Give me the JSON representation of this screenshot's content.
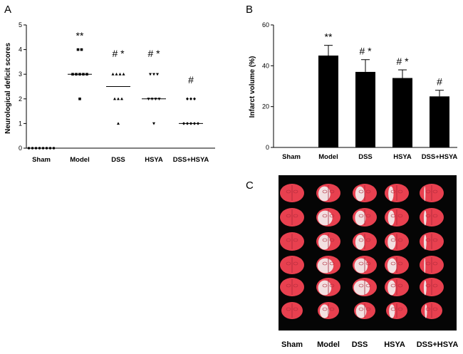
{
  "panels": {
    "a": "A",
    "b": "B",
    "c": "C"
  },
  "chart_data": [
    {
      "type": "scatter",
      "panel": "A",
      "ylabel": "Neurological deficit scores",
      "xlabel": "",
      "ylim": [
        0,
        5
      ],
      "yticks": [
        0,
        1,
        2,
        3,
        4,
        5
      ],
      "categories": [
        "Sham",
        "Model",
        "DSS",
        "HSYA",
        "DSS+HSYA"
      ],
      "markers": [
        "circle",
        "square",
        "triangle-up",
        "triangle-down",
        "diamond"
      ],
      "points": [
        [
          0,
          0,
          0,
          0,
          0,
          0,
          0,
          0
        ],
        [
          4,
          4,
          3,
          3,
          3,
          3,
          3,
          2
        ],
        [
          3,
          3,
          3,
          3,
          2,
          2,
          2,
          1
        ],
        [
          3,
          3,
          3,
          2,
          2,
          2,
          2,
          1
        ],
        [
          2,
          2,
          2,
          1,
          1,
          1,
          1,
          1
        ]
      ],
      "medians": [
        0,
        3,
        2.5,
        2,
        1
      ],
      "annotations": [
        "",
        "**",
        "# *",
        "# *",
        "#"
      ]
    },
    {
      "type": "bar",
      "panel": "B",
      "ylabel": "Infarct volume (%)",
      "xlabel": "",
      "ylim": [
        0,
        60
      ],
      "yticks": [
        0,
        20,
        40,
        60
      ],
      "categories": [
        "Sham",
        "Model",
        "DSS",
        "HSYA",
        "DSS+HSYA"
      ],
      "values": [
        0,
        45,
        37,
        34,
        25
      ],
      "errors": [
        0,
        5,
        6,
        4,
        3
      ],
      "annotations": [
        "",
        "**",
        "# *",
        "# *",
        "#"
      ]
    }
  ],
  "photo": {
    "labels": [
      "Sham",
      "Model",
      "DSS",
      "HSYA",
      "DSS+HSYA"
    ],
    "rows": 6,
    "columns": 5,
    "colors": {
      "background": "#050505",
      "tissue": "#e8404f",
      "infarct": "#f2eeee"
    },
    "infarct_extent": [
      [
        0,
        0,
        0,
        0,
        0,
        0
      ],
      [
        0.45,
        0.55,
        0.45,
        0.6,
        0.5,
        0.4
      ],
      [
        0.35,
        0.4,
        0.35,
        0.5,
        0.6,
        0.45
      ],
      [
        0.2,
        0.25,
        0.3,
        0.35,
        0.3,
        0.25
      ],
      [
        0.05,
        0.1,
        0.1,
        0.05,
        0.1,
        0.1
      ]
    ]
  }
}
